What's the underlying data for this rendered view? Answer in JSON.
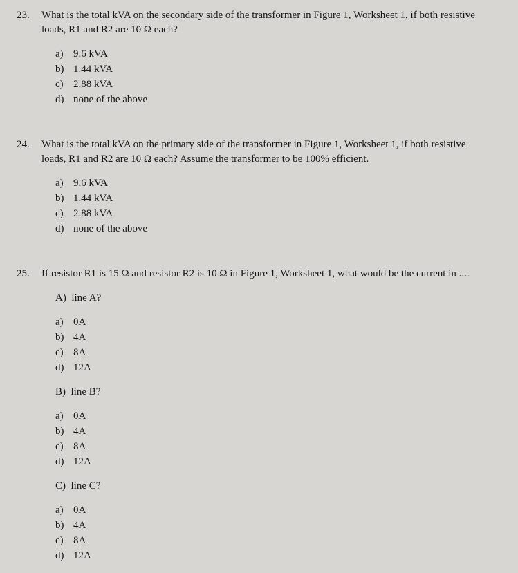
{
  "questions": [
    {
      "number": "23.",
      "text": "What is the total kVA on the secondary side of the transformer in Figure 1, Worksheet 1, if both resistive loads, R1 and R2 are 10 Ω each?",
      "options": [
        {
          "letter": "a)",
          "text": "9.6 kVA"
        },
        {
          "letter": "b)",
          "text": "1.44 kVA"
        },
        {
          "letter": "c)",
          "text": "2.88 kVA"
        },
        {
          "letter": "d)",
          "text": "none of the above"
        }
      ]
    },
    {
      "number": "24.",
      "text": "What is the total kVA on the primary side of the transformer in Figure 1, Worksheet 1, if both resistive loads, R1 and R2 are 10 Ω each? Assume the transformer to be 100% efficient.",
      "options": [
        {
          "letter": "a)",
          "text": "9.6 kVA"
        },
        {
          "letter": "b)",
          "text": "1.44 kVA"
        },
        {
          "letter": "c)",
          "text": "2.88 kVA"
        },
        {
          "letter": "d)",
          "text": "none of the above"
        }
      ]
    },
    {
      "number": "25.",
      "text": "If resistor R1 is 15 Ω and resistor R2 is 10 Ω in Figure 1, Worksheet 1, what would be the current in ....",
      "subparts": [
        {
          "label": "A)",
          "labelText": "line A?",
          "options": [
            {
              "letter": "a)",
              "text": "0A"
            },
            {
              "letter": "b)",
              "text": "4A"
            },
            {
              "letter": "c)",
              "text": "8A"
            },
            {
              "letter": "d)",
              "text": "12A"
            }
          ]
        },
        {
          "label": "B)",
          "labelText": "line B?",
          "options": [
            {
              "letter": "a)",
              "text": "0A"
            },
            {
              "letter": "b)",
              "text": "4A"
            },
            {
              "letter": "c)",
              "text": "8A"
            },
            {
              "letter": "d)",
              "text": "12A"
            }
          ]
        },
        {
          "label": "C)",
          "labelText": "line C?",
          "options": [
            {
              "letter": "a)",
              "text": "0A"
            },
            {
              "letter": "b)",
              "text": "4A"
            },
            {
              "letter": "c)",
              "text": "8A"
            },
            {
              "letter": "d)",
              "text": "12A"
            }
          ]
        }
      ]
    }
  ]
}
